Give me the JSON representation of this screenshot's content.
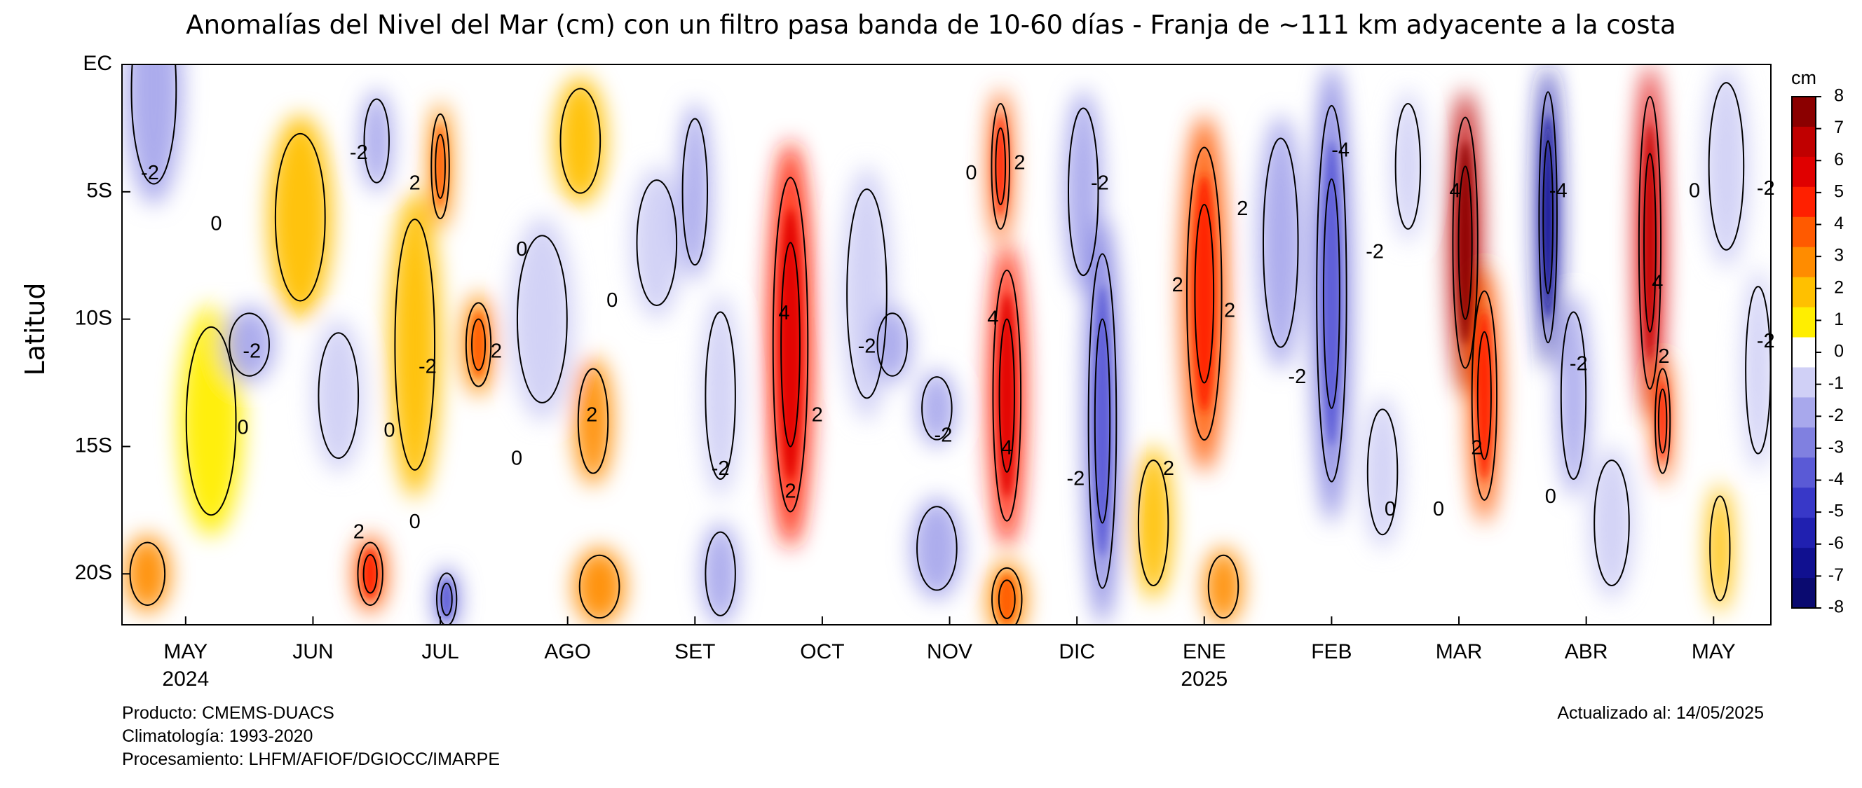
{
  "chart_data": {
    "type": "heatmap",
    "title": "Anomalías del Nivel del Mar (cm) con un filtro pasa banda de 10-60 días - Franja de ~111 km adyacente a la costa",
    "xlabel": "",
    "ylabel": "Latitud",
    "x_ticks": [
      {
        "label": "MAY",
        "year": "2024",
        "month_index": 1
      },
      {
        "label": "JUN",
        "year": "",
        "month_index": 2
      },
      {
        "label": "JUL",
        "year": "",
        "month_index": 3
      },
      {
        "label": "AGO",
        "year": "",
        "month_index": 4
      },
      {
        "label": "SET",
        "year": "",
        "month_index": 5
      },
      {
        "label": "OCT",
        "year": "",
        "month_index": 6
      },
      {
        "label": "NOV",
        "year": "",
        "month_index": 7
      },
      {
        "label": "DIC",
        "year": "",
        "month_index": 8
      },
      {
        "label": "ENE",
        "year": "2025",
        "month_index": 9
      },
      {
        "label": "FEB",
        "year": "",
        "month_index": 10
      },
      {
        "label": "MAR",
        "year": "",
        "month_index": 11
      },
      {
        "label": "ABR",
        "year": "",
        "month_index": 12
      },
      {
        "label": "MAY",
        "year": "",
        "month_index": 13
      }
    ],
    "x_range_months": [
      0.5,
      13.45
    ],
    "y_ticks": [
      {
        "label": "EC",
        "lat": 0
      },
      {
        "label": "5S",
        "lat": -5
      },
      {
        "label": "10S",
        "lat": -10
      },
      {
        "label": "15S",
        "lat": -15
      },
      {
        "label": "20S",
        "lat": -20
      }
    ],
    "ylim": [
      -22,
      0
    ],
    "colorbar": {
      "unit": "cm",
      "min": -8,
      "max": 8,
      "ticks": [
        8,
        7,
        6,
        5,
        4,
        3,
        2,
        1,
        0,
        -1,
        -2,
        -3,
        -4,
        -5,
        -6,
        -7,
        -8
      ],
      "colors": [
        "#8b0000",
        "#c00000",
        "#e00000",
        "#ff2000",
        "#ff5a00",
        "#ff8c00",
        "#ffc000",
        "#ffee00",
        "#ffffff",
        "#d0d0f6",
        "#a8a8ec",
        "#8080e0",
        "#5a5ad6",
        "#3838c8",
        "#2020b0",
        "#101090",
        "#0a0a70"
      ]
    },
    "contour_levels": [
      -4,
      -2,
      0,
      2,
      4
    ],
    "features": [
      {
        "month": 0.75,
        "lat": -1,
        "value": -2,
        "width": 0.45,
        "height": 9
      },
      {
        "month": 1.2,
        "lat": -14,
        "value": 1,
        "width": 0.5,
        "height": 9
      },
      {
        "month": 0.7,
        "lat": -20,
        "value": 2.5,
        "width": 0.35,
        "height": 3
      },
      {
        "month": 1.5,
        "lat": -11,
        "value": -2.5,
        "width": 0.4,
        "height": 3
      },
      {
        "month": 1.9,
        "lat": -6,
        "value": 1.5,
        "width": 0.5,
        "height": 8
      },
      {
        "month": 2.2,
        "lat": -13,
        "value": -1,
        "width": 0.4,
        "height": 6
      },
      {
        "month": 2.5,
        "lat": -3,
        "value": -2.5,
        "width": 0.25,
        "height": 4
      },
      {
        "month": 2.45,
        "lat": -20,
        "value": 3.5,
        "width": 0.25,
        "height": 3
      },
      {
        "month": 2.8,
        "lat": -11,
        "value": 1.5,
        "width": 0.4,
        "height": 12
      },
      {
        "month": 3.0,
        "lat": -4,
        "value": 3,
        "width": 0.18,
        "height": 5
      },
      {
        "month": 3.05,
        "lat": -21,
        "value": -3.5,
        "width": 0.2,
        "height": 2.5
      },
      {
        "month": 3.3,
        "lat": -11,
        "value": 3,
        "width": 0.25,
        "height": 4
      },
      {
        "month": 3.8,
        "lat": -10,
        "value": -1,
        "width": 0.5,
        "height": 8
      },
      {
        "month": 4.1,
        "lat": -3,
        "value": 1.5,
        "width": 0.4,
        "height": 5
      },
      {
        "month": 4.2,
        "lat": -14,
        "value": 2.5,
        "width": 0.3,
        "height": 5
      },
      {
        "month": 4.25,
        "lat": -20.5,
        "value": 2.5,
        "width": 0.4,
        "height": 3
      },
      {
        "month": 4.7,
        "lat": -7,
        "value": -1,
        "width": 0.4,
        "height": 6
      },
      {
        "month": 5.0,
        "lat": -5,
        "value": -2,
        "width": 0.25,
        "height": 7
      },
      {
        "month": 5.2,
        "lat": -13,
        "value": -1.5,
        "width": 0.3,
        "height": 8
      },
      {
        "month": 5.2,
        "lat": -20,
        "value": -2,
        "width": 0.3,
        "height": 4
      },
      {
        "month": 5.75,
        "lat": -11,
        "value": 4.5,
        "width": 0.35,
        "height": 16
      },
      {
        "month": 6.35,
        "lat": -9,
        "value": -1.5,
        "width": 0.4,
        "height": 10
      },
      {
        "month": 6.55,
        "lat": -11,
        "value": -2.5,
        "width": 0.3,
        "height": 3
      },
      {
        "month": 6.9,
        "lat": -13.5,
        "value": -2.5,
        "width": 0.3,
        "height": 3
      },
      {
        "month": 6.9,
        "lat": -19,
        "value": -2,
        "width": 0.4,
        "height": 4
      },
      {
        "month": 7.4,
        "lat": -4,
        "value": 3.5,
        "width": 0.18,
        "height": 6
      },
      {
        "month": 7.45,
        "lat": -13,
        "value": 5,
        "width": 0.28,
        "height": 12
      },
      {
        "month": 7.45,
        "lat": -21,
        "value": 3,
        "width": 0.3,
        "height": 3
      },
      {
        "month": 8.05,
        "lat": -5,
        "value": -2,
        "width": 0.3,
        "height": 8
      },
      {
        "month": 8.2,
        "lat": -14,
        "value": -3.5,
        "width": 0.28,
        "height": 16
      },
      {
        "month": 8.6,
        "lat": -18,
        "value": 1.5,
        "width": 0.3,
        "height": 6
      },
      {
        "month": 9.0,
        "lat": -9,
        "value": 3.5,
        "width": 0.35,
        "height": 14
      },
      {
        "month": 9.15,
        "lat": -20.5,
        "value": 2.5,
        "width": 0.3,
        "height": 3
      },
      {
        "month": 9.6,
        "lat": -7,
        "value": -2,
        "width": 0.35,
        "height": 10
      },
      {
        "month": 10.0,
        "lat": -9,
        "value": -3.5,
        "width": 0.3,
        "height": 18
      },
      {
        "month": 10.4,
        "lat": -16,
        "value": -1.5,
        "width": 0.3,
        "height": 6
      },
      {
        "month": 10.6,
        "lat": -4,
        "value": -1.5,
        "width": 0.25,
        "height": 6
      },
      {
        "month": 11.05,
        "lat": -7,
        "value": 6.5,
        "width": 0.25,
        "height": 12
      },
      {
        "month": 11.2,
        "lat": -13,
        "value": 3.5,
        "width": 0.25,
        "height": 10
      },
      {
        "month": 11.7,
        "lat": -6,
        "value": -6,
        "width": 0.18,
        "height": 12
      },
      {
        "month": 11.9,
        "lat": -13,
        "value": -2,
        "width": 0.25,
        "height": 8
      },
      {
        "month": 12.2,
        "lat": -18,
        "value": -1.5,
        "width": 0.35,
        "height": 6
      },
      {
        "month": 12.5,
        "lat": -7,
        "value": 5.5,
        "width": 0.22,
        "height": 14
      },
      {
        "month": 12.6,
        "lat": -14,
        "value": 3.5,
        "width": 0.15,
        "height": 5
      },
      {
        "month": 13.1,
        "lat": -4,
        "value": -1.5,
        "width": 0.35,
        "height": 8
      },
      {
        "month": 13.05,
        "lat": -19,
        "value": 2,
        "width": 0.2,
        "height": 5
      },
      {
        "month": 13.35,
        "lat": -12,
        "value": -1.5,
        "width": 0.25,
        "height": 8
      }
    ],
    "annotations": [
      {
        "text": "-2",
        "month": 0.72,
        "lat": -4.3
      },
      {
        "text": "0",
        "month": 1.24,
        "lat": -6.3
      },
      {
        "text": "-2",
        "month": 1.52,
        "lat": -11.3
      },
      {
        "text": "0",
        "month": 1.45,
        "lat": -14.3
      },
      {
        "text": "-2",
        "month": 2.36,
        "lat": -3.5
      },
      {
        "text": "2",
        "month": 2.8,
        "lat": -4.7
      },
      {
        "text": "-2",
        "month": 2.9,
        "lat": -11.9
      },
      {
        "text": "2",
        "month": 3.44,
        "lat": -11.3
      },
      {
        "text": "0",
        "month": 2.6,
        "lat": -14.4
      },
      {
        "text": "2",
        "month": 2.36,
        "lat": -18.4
      },
      {
        "text": "0",
        "month": 2.8,
        "lat": -18
      },
      {
        "text": "0",
        "month": 3.64,
        "lat": -7.3
      },
      {
        "text": "0",
        "month": 3.6,
        "lat": -15.5
      },
      {
        "text": "2",
        "month": 4.19,
        "lat": -13.8
      },
      {
        "text": "0",
        "month": 4.35,
        "lat": -9.3
      },
      {
        "text": "-2",
        "month": 5.2,
        "lat": -15.9
      },
      {
        "text": "4",
        "month": 5.7,
        "lat": -9.8
      },
      {
        "text": "2",
        "month": 5.96,
        "lat": -13.8
      },
      {
        "text": "2",
        "month": 5.75,
        "lat": -16.8
      },
      {
        "text": "-2",
        "month": 6.35,
        "lat": -11.1
      },
      {
        "text": "-2",
        "month": 6.95,
        "lat": -14.6
      },
      {
        "text": "0",
        "month": 7.17,
        "lat": -4.3
      },
      {
        "text": "2",
        "month": 7.55,
        "lat": -3.9
      },
      {
        "text": "4",
        "month": 7.34,
        "lat": -10
      },
      {
        "text": "4",
        "month": 7.45,
        "lat": -15.1
      },
      {
        "text": "-2",
        "month": 8.18,
        "lat": -4.7
      },
      {
        "text": "-2",
        "month": 7.99,
        "lat": -16.3
      },
      {
        "text": "2",
        "month": 8.79,
        "lat": -8.7
      },
      {
        "text": "2",
        "month": 9.3,
        "lat": -5.7
      },
      {
        "text": "2",
        "month": 9.2,
        "lat": -9.7
      },
      {
        "text": "2",
        "month": 8.72,
        "lat": -15.9
      },
      {
        "text": "-2",
        "month": 9.73,
        "lat": -12.3
      },
      {
        "text": "-4",
        "month": 10.07,
        "lat": -3.4
      },
      {
        "text": "-2",
        "month": 10.34,
        "lat": -7.4
      },
      {
        "text": "0",
        "month": 10.46,
        "lat": -17.5
      },
      {
        "text": "0",
        "month": 10.84,
        "lat": -17.5
      },
      {
        "text": "4",
        "month": 10.97,
        "lat": -5
      },
      {
        "text": "2",
        "month": 11.14,
        "lat": -15.1
      },
      {
        "text": "-4",
        "month": 11.78,
        "lat": -5
      },
      {
        "text": "-2",
        "month": 11.94,
        "lat": -11.8
      },
      {
        "text": "0",
        "month": 11.72,
        "lat": -17
      },
      {
        "text": "4",
        "month": 12.56,
        "lat": -8.6
      },
      {
        "text": "2",
        "month": 12.61,
        "lat": -11.5
      },
      {
        "text": "0",
        "month": 12.85,
        "lat": -5
      },
      {
        "text": "-2",
        "month": 13.41,
        "lat": -4.9
      },
      {
        "text": "-2",
        "month": 13.41,
        "lat": -10.9
      }
    ]
  },
  "footer": {
    "left_line1": "Producto: CMEMS-DUACS",
    "left_line2": "Climatología: 1993-2020",
    "left_line3": "Procesamiento: LHFM/AFIOF/DGIOCC/IMARPE",
    "right_line1": "Actualizado al: 14/05/2025"
  }
}
